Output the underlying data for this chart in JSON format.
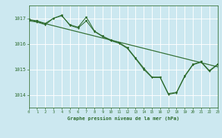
{
  "background_color": "#cce8f0",
  "grid_color": "#ffffff",
  "line_color": "#2d6b2d",
  "title": "Graphe pression niveau de la mer (hPa)",
  "xlim": [
    0,
    23
  ],
  "ylim": [
    1013.5,
    1017.5
  ],
  "yticks": [
    1014,
    1015,
    1016,
    1017
  ],
  "xticks": [
    0,
    1,
    2,
    3,
    4,
    5,
    6,
    7,
    8,
    9,
    10,
    11,
    12,
    13,
    14,
    15,
    16,
    17,
    18,
    19,
    20,
    21,
    22,
    23
  ],
  "series1_x": [
    0,
    23
  ],
  "series1_y": [
    1016.95,
    1015.1
  ],
  "series2_x": [
    0,
    1,
    2,
    3,
    4,
    5,
    6,
    7,
    8,
    9,
    10,
    11,
    12,
    13,
    14,
    15,
    16,
    17,
    18,
    19,
    20,
    21,
    22,
    23
  ],
  "series2_y": [
    1016.9,
    1016.85,
    1016.75,
    1017.0,
    1017.1,
    1016.75,
    1016.65,
    1017.05,
    1016.5,
    1016.3,
    1016.15,
    1016.05,
    1015.85,
    1015.45,
    1015.05,
    1014.7,
    1014.7,
    1014.05,
    1014.1,
    1014.75,
    1015.2,
    1015.3,
    1014.95,
    1015.2
  ],
  "series3_x": [
    0,
    1,
    2,
    3,
    4,
    5,
    6,
    7,
    8,
    9,
    10,
    11,
    12,
    13,
    14,
    15,
    16,
    17,
    18,
    19,
    20,
    21,
    22,
    23
  ],
  "series3_y": [
    1016.95,
    1016.9,
    1016.8,
    1017.0,
    1017.12,
    1016.72,
    1016.62,
    1016.9,
    1016.48,
    1016.28,
    1016.12,
    1016.02,
    1015.82,
    1015.42,
    1015.0,
    1014.68,
    1014.68,
    1014.02,
    1014.08,
    1014.72,
    1015.18,
    1015.28,
    1014.92,
    1015.18
  ]
}
